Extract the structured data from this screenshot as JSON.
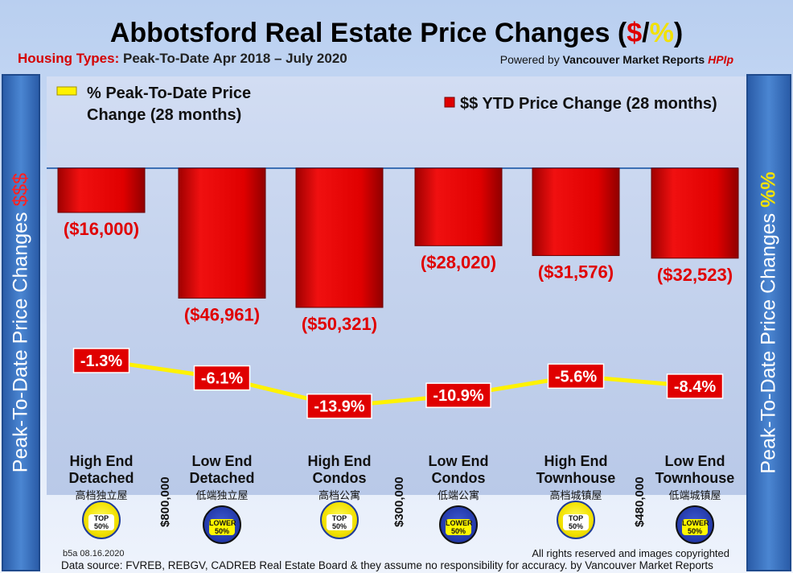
{
  "title": {
    "prefix": "Abbotsford Real Estate Price Changes (",
    "dollar": "$",
    "slash": "/",
    "percent": "%",
    "suffix": ")"
  },
  "subtitle": {
    "label": "Housing Types:",
    "text": "Peak-To-Date Apr 2018 – July 2020"
  },
  "powered": {
    "prefix": "Powered by ",
    "brand": "Vancouver Market Reports",
    "hpi": "HPIp"
  },
  "legend": {
    "line_label_1": "% Peak-To-Date Price",
    "line_label_2": "Change (28 months)",
    "bar_label": "$$ YTD Price Change (28 months)"
  },
  "left_axis": {
    "text": "Peak-To-Date Price Changes ",
    "accent": "$$$"
  },
  "right_axis": {
    "text": "Peak-To-Date  Price  Changes ",
    "accent": "%%"
  },
  "colors": {
    "bar": "#e00000",
    "line": "#fff200",
    "label_bg": "#e00000",
    "accent_red": "#e00000",
    "accent_yellow": "#f2e100"
  },
  "chart_data": {
    "type": "bar+line",
    "categories": [
      "High End Detached",
      "Low End Detached",
      "High End Condos",
      "Low End Condos",
      "High End Townhouse",
      "Low End Townhouse"
    ],
    "series": [
      {
        "name": "$$ YTD Price Change (28 months)",
        "type": "bar",
        "values": [
          -16000,
          -46961,
          -50321,
          -28020,
          -31576,
          -32523
        ],
        "labels": [
          "($16,000)",
          "($46,961)",
          "($50,321)",
          "($28,020)",
          "($31,576)",
          "($32,523)"
        ]
      },
      {
        "name": "% Peak-To-Date Price Change (28 months)",
        "type": "line",
        "values": [
          -1.3,
          -6.1,
          -13.9,
          -10.9,
          -5.6,
          -8.4
        ],
        "labels": [
          "-1.3%",
          "-6.1%",
          "-13.9%",
          "-10.9%",
          "-5.6%",
          "-8.4%"
        ]
      }
    ],
    "bar_ylim": [
      -55000,
      0
    ],
    "line_ylim": [
      -20,
      5
    ]
  },
  "categories": [
    {
      "line1": "High End",
      "line2": "Detached",
      "cn": "高档独立屋",
      "badge": "top"
    },
    {
      "line1": "Low End",
      "line2": "Detached",
      "cn": "低端独立屋",
      "badge": "lower"
    },
    {
      "line1": "High End",
      "line2": "Condos",
      "cn": "高档公寓",
      "badge": "top"
    },
    {
      "line1": "Low End",
      "line2": "Condos",
      "cn": "低端公寓",
      "badge": "lower"
    },
    {
      "line1": "High End",
      "line2": "Townhouse",
      "cn": "高档城镇屋",
      "badge": "top"
    },
    {
      "line1": "Low End",
      "line2": "Townhouse",
      "cn": "低端城镇屋",
      "badge": "lower"
    }
  ],
  "badges": {
    "top_1": "TOP",
    "top_2": "50%",
    "lower_1": "LOWER",
    "lower_2": "50%"
  },
  "price_splits": [
    "$800,000",
    "$300,000",
    "$480,000"
  ],
  "footer": {
    "id": "b5a 08.16.2020",
    "rights": "All rights reserved and  images copyrighted",
    "source": "Data source: FVREB, REBGV, CADREB Real Estate Board & they assume no responsibility for accuracy. by Vancouver Market Reports"
  }
}
